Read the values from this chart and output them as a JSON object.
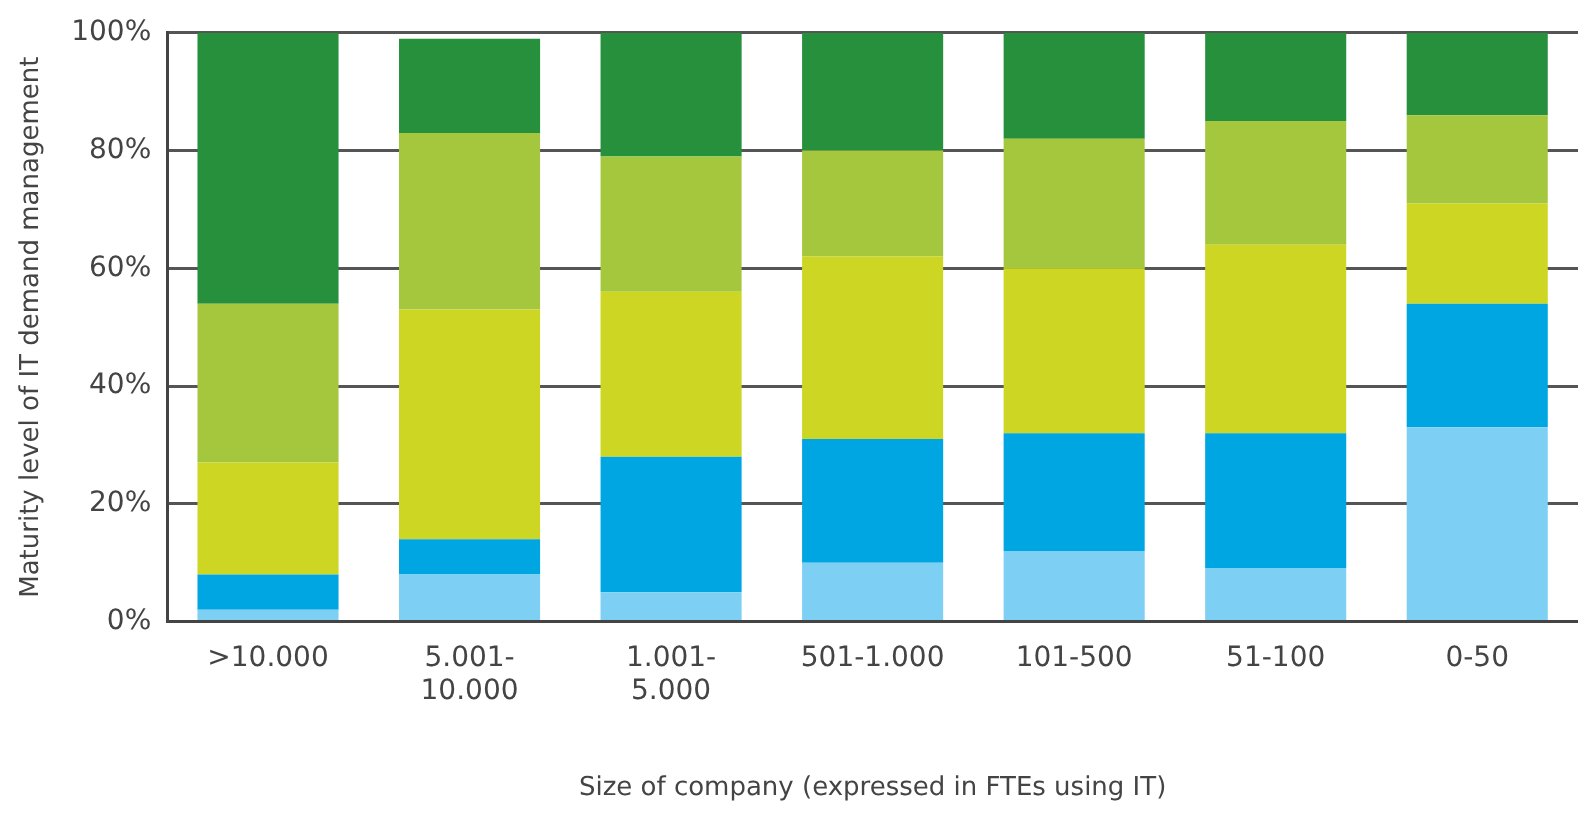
{
  "chart_data": {
    "type": "bar",
    "stacked": true,
    "xlabel": "Size of company (expressed in FTEs using IT)",
    "ylabel": "Maturity level of IT demand management",
    "categories": [
      ">10.000",
      "5.001-\n10.000",
      "1.001-\n5.000",
      "501-1.000",
      "101-500",
      "51-100",
      "0-50"
    ],
    "series": [
      {
        "color": "#7ecff4",
        "values": [
          2,
          8,
          5,
          10,
          12,
          9,
          33
        ]
      },
      {
        "color": "#00a6e2",
        "values": [
          6,
          6,
          23,
          21,
          20,
          23,
          21
        ]
      },
      {
        "color": "#cdd622",
        "values": [
          19,
          39,
          28,
          31,
          28,
          32,
          17
        ]
      },
      {
        "color": "#a4c73e",
        "values": [
          27,
          30,
          23,
          18,
          22,
          21,
          15
        ]
      },
      {
        "color": "#26903c",
        "values": [
          46,
          16,
          21,
          20,
          18,
          15,
          14
        ]
      }
    ],
    "ylim": [
      0,
      100
    ],
    "yticks": [
      {
        "value": 0,
        "label": "0%"
      },
      {
        "value": 20,
        "label": "20%"
      },
      {
        "value": 40,
        "label": "40%"
      },
      {
        "value": 60,
        "label": "60%"
      },
      {
        "value": 80,
        "label": "80%"
      },
      {
        "value": 100,
        "label": "100%"
      }
    ],
    "grid": "y",
    "legend": false
  }
}
